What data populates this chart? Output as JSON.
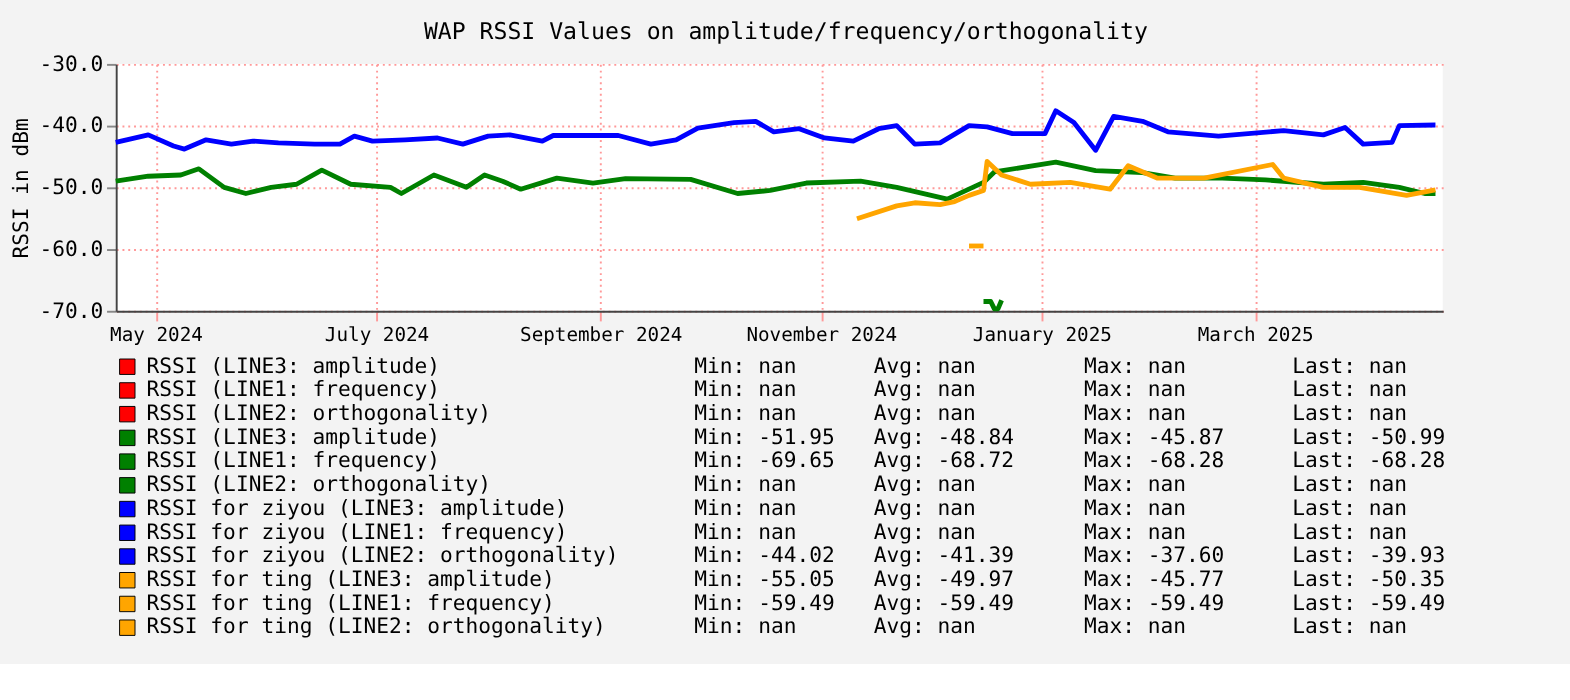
{
  "chart_data": {
    "type": "line",
    "title": "WAP RSSI Values on amplitude/frequency/orthogonality",
    "ylabel": "RSSI in dBm",
    "xlim": [
      "2024-05-01",
      "2025-05-03"
    ],
    "xticks": [
      {
        "value": "2024-05-12",
        "label": "May 2024"
      },
      {
        "value": "2024-07-12",
        "label": "July 2024"
      },
      {
        "value": "2024-09-12",
        "label": "September 2024"
      },
      {
        "value": "2024-11-12",
        "label": "November 2024"
      },
      {
        "value": "2025-01-12",
        "label": "January 2025"
      },
      {
        "value": "2025-03-12",
        "label": "March 2025"
      }
    ],
    "ylim": [
      -70,
      -30
    ],
    "yticks": [
      {
        "value": -70,
        "label": "-70.0"
      },
      {
        "value": -60,
        "label": "-60.0"
      },
      {
        "value": -50,
        "label": "-50.0"
      },
      {
        "value": -40,
        "label": "-40.0"
      },
      {
        "value": -30,
        "label": "-30.0"
      }
    ],
    "grid": true,
    "legend": "bottom",
    "series": [
      {
        "name": "RSSI (LINE3: amplitude)",
        "color": "#ff0000"
      },
      {
        "name": "RSSI (LINE1: frequency)",
        "color": "#ff0000"
      },
      {
        "name": "RSSI (LINE2: orthogonality)",
        "color": "#ff0000"
      },
      {
        "name": "RSSI (LINE3: amplitude)",
        "color": "#008000",
        "x": [
          "2024-05-01",
          "2024-05-10",
          "2024-05-19",
          "2024-05-24",
          "2024-05-31",
          "2024-06-06",
          "2024-06-13",
          "2024-06-20",
          "2024-06-27",
          "2024-07-05",
          "2024-07-16",
          "2024-07-19",
          "2024-07-28",
          "2024-08-06",
          "2024-08-11",
          "2024-08-16",
          "2024-08-21",
          "2024-08-31",
          "2024-09-10",
          "2024-09-19",
          "2024-10-07",
          "2024-10-20",
          "2024-10-29",
          "2024-11-08",
          "2024-11-23",
          "2024-12-03",
          "2024-12-17",
          "2024-12-27",
          "2024-12-30",
          "2025-01-16",
          "2025-01-27",
          "2025-02-09",
          "2025-02-18",
          "2025-03-03",
          "2025-03-15",
          "2025-03-31",
          "2025-04-11",
          "2025-04-21",
          "2025-04-28",
          "2025-05-01"
        ],
        "values": [
          -49,
          -48.2,
          -48,
          -47,
          -50,
          -51,
          -50,
          -49.5,
          -47.2,
          -49.5,
          -50,
          -51,
          -48,
          -50,
          -48,
          -49,
          -50.3,
          -48.5,
          -49.3,
          -48.6,
          -48.7,
          -51,
          -50.5,
          -49.3,
          -49,
          -50,
          -51.9,
          -49.2,
          -47.5,
          -45.9,
          -47.3,
          -47.6,
          -48.5,
          -48.5,
          -48.8,
          -49.5,
          -49.2,
          -50,
          -51,
          -51
        ]
      },
      {
        "name": "RSSI (LINE1: frequency)",
        "color": "#008000",
        "x": [
          "2024-12-27",
          "2024-12-29",
          "2024-12-30",
          "2024-12-31",
          "2025-01-01"
        ],
        "values": [
          -68.5,
          -68.5,
          -69.7,
          -69.7,
          -68.3
        ]
      },
      {
        "name": "RSSI (LINE2: orthogonality)",
        "color": "#008000"
      },
      {
        "name": "RSSI for ziyou (LINE3: amplitude)",
        "color": "#0000ff"
      },
      {
        "name": "RSSI for ziyou (LINE1: frequency)",
        "color": "#0000ff"
      },
      {
        "name": "RSSI for ziyou (LINE2: orthogonality)",
        "color": "#0000ff",
        "x": [
          "2024-05-01",
          "2024-05-10",
          "2024-05-17",
          "2024-05-20",
          "2024-05-26",
          "2024-06-02",
          "2024-06-08",
          "2024-06-15",
          "2024-06-25",
          "2024-07-02",
          "2024-07-06",
          "2024-07-11",
          "2024-07-20",
          "2024-07-29",
          "2024-08-05",
          "2024-08-12",
          "2024-08-18",
          "2024-08-27",
          "2024-08-30",
          "2024-09-17",
          "2024-09-26",
          "2024-10-03",
          "2024-10-09",
          "2024-10-19",
          "2024-10-25",
          "2024-10-30",
          "2024-11-06",
          "2024-11-13",
          "2024-11-21",
          "2024-11-28",
          "2024-12-03",
          "2024-12-08",
          "2024-12-15",
          "2024-12-23",
          "2024-12-28",
          "2025-01-04",
          "2025-01-13",
          "2025-01-16",
          "2025-01-21",
          "2025-01-27",
          "2025-02-01",
          "2025-02-09",
          "2025-02-16",
          "2025-03-02",
          "2025-03-20",
          "2025-03-31",
          "2025-04-06",
          "2025-04-11",
          "2025-04-19",
          "2025-04-21",
          "2025-05-01"
        ],
        "values": [
          -42.7,
          -41.5,
          -43.3,
          -43.8,
          -42.3,
          -43,
          -42.5,
          -42.8,
          -43,
          -43,
          -41.7,
          -42.5,
          -42.3,
          -42,
          -43,
          -41.7,
          -41.5,
          -42.5,
          -41.6,
          -41.6,
          -43,
          -42.3,
          -40.4,
          -39.5,
          -39.3,
          -41,
          -40.5,
          -42,
          -42.5,
          -40.5,
          -40,
          -43,
          -42.8,
          -40,
          -40.2,
          -41.3,
          -41.3,
          -37.6,
          -39.5,
          -44,
          -38.5,
          -39.3,
          -41,
          -41.7,
          -40.8,
          -41.5,
          -40.3,
          -43,
          -42.7,
          -40,
          -39.9
        ]
      },
      {
        "name": "RSSI for ting (LINE3: amplitude)",
        "color": "#ffa500",
        "x": [
          "2024-11-22",
          "2024-12-03",
          "2024-12-08",
          "2024-12-15",
          "2024-12-19",
          "2024-12-23",
          "2024-12-27",
          "2024-12-28",
          "2025-01-01",
          "2025-01-09",
          "2025-01-20",
          "2025-01-31",
          "2025-02-05",
          "2025-02-13",
          "2025-02-26",
          "2025-03-17",
          "2025-03-20",
          "2025-03-31",
          "2025-04-10",
          "2025-04-23",
          "2025-05-01"
        ],
        "values": [
          -55.1,
          -53,
          -52.5,
          -52.8,
          -52.3,
          -51.3,
          -50.5,
          -45.8,
          -48,
          -49.5,
          -49.2,
          -50.3,
          -46.5,
          -48.5,
          -48.5,
          -46.3,
          -48.5,
          -50,
          -50,
          -51.3,
          -50.4
        ]
      },
      {
        "name": "RSSI for ting (LINE1: frequency)",
        "color": "#ffa500",
        "x": [
          "2024-12-23",
          "2024-12-27"
        ],
        "values": [
          -59.5,
          -59.5
        ]
      },
      {
        "name": "RSSI for ting (LINE2: orthogonality)",
        "color": "#ffa500"
      }
    ],
    "annotations": [
      "Min: nan",
      "Avg: nan",
      "Max: nan",
      "Last: nan",
      "Min: nan",
      "Avg: nan",
      "Max: nan",
      "Last: nan",
      "Min: nan",
      "Avg: nan",
      "Max: nan",
      "Last: nan",
      "Min: -51.95",
      "Avg: -48.84",
      "Max: -45.87",
      "Last: -50.99",
      "Min: -69.65",
      "Avg: -68.72",
      "Max: -68.28",
      "Last: -68.28",
      "Min: nan",
      "Avg: nan",
      "Max: nan",
      "Last: nan",
      "Min: nan",
      "Avg: nan",
      "Max: nan",
      "Last: nan",
      "Min: nan",
      "Avg: nan",
      "Max: nan",
      "Last: nan",
      "Min: -44.02",
      "Avg: -41.39",
      "Max: -37.60",
      "Last: -39.93",
      "Min: -55.05",
      "Avg: -49.97",
      "Max: -45.77",
      "Last: -50.35",
      "Min: -59.49",
      "Avg: -59.49",
      "Max: -59.49",
      "Last: -59.49",
      "Min: nan",
      "Avg: nan",
      "Max: nan",
      "Last: nan"
    ]
  }
}
